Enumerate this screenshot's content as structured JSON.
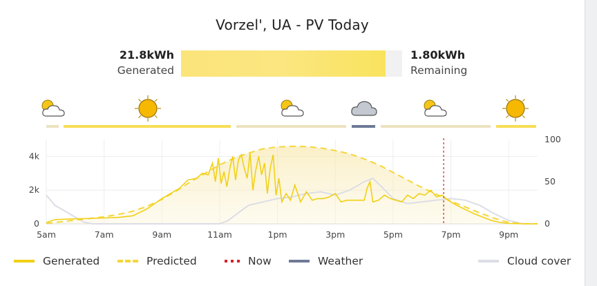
{
  "title": "Vorzel', UA - PV Today",
  "summary": {
    "generated_value": "21.8kWh",
    "generated_label": "Generated",
    "remaining_value": "1.80kWh",
    "remaining_label": "Remaining",
    "generated_fraction": 0.924
  },
  "weather_strip": {
    "icons": [
      "partly-cloudy-icon",
      "sun-icon",
      "partly-cloudy-icon",
      "cloud-icon",
      "partly-cloudy-icon",
      "sun-icon"
    ]
  },
  "legend": {
    "generated": "Generated",
    "predicted": "Predicted",
    "now": "Now",
    "weather": "Weather",
    "cloud_cover": "Cloud cover"
  },
  "colors": {
    "generated": "#f1d016",
    "predicted": "#f5d63a",
    "now": "#d9202a",
    "weather": "#6e7a96",
    "cloud": "#dcdde6"
  },
  "chart_data": {
    "type": "line",
    "x_tick_labels": [
      "5am",
      "7am",
      "9am",
      "11am",
      "1pm",
      "3pm",
      "5pm",
      "7pm",
      "9pm"
    ],
    "y_left_ticks": [
      "0",
      "2k",
      "4k"
    ],
    "y_right_ticks": [
      "0",
      "50",
      "100"
    ],
    "x_range_hours": [
      5,
      22
    ],
    "y_left_range": [
      0,
      5000
    ],
    "y_right_range": [
      0,
      100
    ],
    "now_hour": 18.75,
    "series": [
      {
        "name": "Generated",
        "axis": "left",
        "style": "solid",
        "x": [
          5.0,
          5.3,
          5.7,
          6.0,
          6.5,
          7.0,
          7.5,
          8.0,
          8.5,
          9.0,
          9.3,
          9.6,
          9.9,
          10.2,
          10.4,
          10.6,
          10.75,
          10.85,
          10.95,
          11.05,
          11.15,
          11.25,
          11.35,
          11.45,
          11.55,
          11.65,
          11.75,
          11.85,
          11.95,
          12.05,
          12.15,
          12.25,
          12.35,
          12.45,
          12.55,
          12.65,
          12.75,
          12.85,
          12.95,
          13.05,
          13.15,
          13.3,
          13.45,
          13.6,
          13.8,
          14.0,
          14.2,
          14.4,
          14.6,
          14.8,
          15.0,
          15.2,
          15.4,
          15.6,
          15.8,
          16.0,
          16.1,
          16.2,
          16.3,
          16.5,
          16.7,
          16.9,
          17.1,
          17.3,
          17.5,
          17.7,
          17.9,
          18.1,
          18.3,
          18.5,
          18.7,
          18.9,
          19.2,
          19.5,
          19.8,
          20.1,
          20.4,
          20.7,
          21.0,
          21.5,
          22.0
        ],
        "values": [
          70,
          250,
          280,
          300,
          320,
          350,
          380,
          480,
          900,
          1500,
          1800,
          2100,
          2600,
          2700,
          3000,
          2900,
          3600,
          2500,
          3900,
          2400,
          3100,
          2200,
          3300,
          4000,
          2600,
          3800,
          4100,
          3300,
          2700,
          4200,
          2000,
          3200,
          4000,
          2900,
          3600,
          1800,
          3300,
          4100,
          1700,
          2700,
          1300,
          1800,
          1400,
          2300,
          1300,
          1900,
          1400,
          1500,
          1500,
          1600,
          1800,
          1300,
          1400,
          1400,
          1400,
          1400,
          2100,
          2500,
          1300,
          1400,
          1700,
          1500,
          1400,
          1300,
          1700,
          1500,
          1800,
          1700,
          2000,
          1600,
          1700,
          1400,
          1100,
          850,
          600,
          400,
          200,
          80,
          20,
          0,
          0
        ]
      },
      {
        "name": "Predicted",
        "axis": "left",
        "style": "dashed",
        "x": [
          5.0,
          5.5,
          6.0,
          6.5,
          7.0,
          7.5,
          8.0,
          8.5,
          9.0,
          9.5,
          10.0,
          10.5,
          11.0,
          11.5,
          12.0,
          12.5,
          13.0,
          13.5,
          14.0,
          14.5,
          15.0,
          15.5,
          16.0,
          16.5,
          17.0,
          17.5,
          18.0,
          18.5,
          19.0,
          19.5,
          20.0,
          20.5,
          21.0,
          21.5,
          22.0
        ],
        "values": [
          30,
          120,
          220,
          320,
          420,
          560,
          750,
          1050,
          1450,
          1950,
          2500,
          3000,
          3500,
          3900,
          4200,
          4450,
          4560,
          4600,
          4580,
          4500,
          4350,
          4150,
          3850,
          3500,
          3050,
          2600,
          2150,
          1750,
          1350,
          1000,
          650,
          330,
          80,
          10,
          0
        ]
      },
      {
        "name": "Cloud cover",
        "axis": "right",
        "style": "solid",
        "x": [
          5.0,
          5.3,
          5.6,
          6.0,
          6.3,
          6.6,
          7.0,
          8.0,
          9.0,
          10.0,
          11.0,
          11.3,
          11.6,
          12.0,
          12.5,
          13.0,
          13.5,
          14.0,
          14.5,
          15.0,
          15.5,
          16.0,
          16.3,
          16.6,
          17.0,
          17.5,
          18.0,
          18.5,
          19.0,
          19.5,
          20.0,
          20.5,
          21.0,
          21.5,
          22.0
        ],
        "values": [
          34,
          22,
          16,
          8,
          2,
          0,
          0,
          0,
          0,
          0,
          0,
          4,
          12,
          22,
          26,
          30,
          32,
          36,
          38,
          34,
          40,
          50,
          54,
          44,
          30,
          24,
          26,
          28,
          30,
          28,
          22,
          12,
          4,
          0,
          0
        ]
      }
    ]
  }
}
